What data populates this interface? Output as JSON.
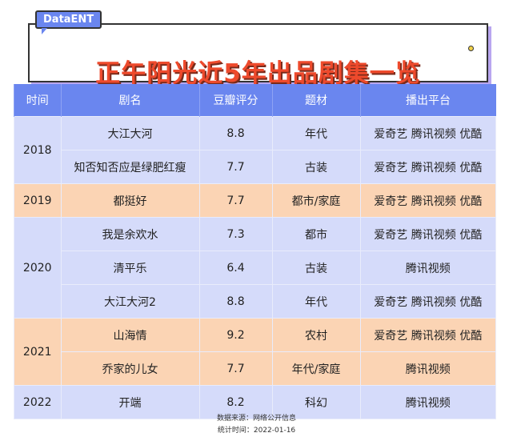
{
  "brand": "DataENT",
  "title": "正午阳光近5年出品剧集一览",
  "columns": [
    "时间",
    "剧名",
    "豆瓣评分",
    "题材",
    "播出平台"
  ],
  "colors": {
    "header": "#6a86ef",
    "row_blue": "#d5dbfa",
    "row_orange": "#fbd4b4",
    "title": "#ee4a2c"
  },
  "groups": [
    {
      "year": "2018",
      "rows": [
        {
          "name": "大江大河",
          "score": "8.8",
          "genre": "年代",
          "platform": "爱奇艺 腾讯视频 优酷"
        },
        {
          "name": "知否知否应是绿肥红瘦",
          "score": "7.7",
          "genre": "古装",
          "platform": "爱奇艺 腾讯视频 优酷"
        }
      ]
    },
    {
      "year": "2019",
      "rows": [
        {
          "name": "都挺好",
          "score": "7.7",
          "genre": "都市/家庭",
          "platform": "爱奇艺 腾讯视频 优酷"
        }
      ]
    },
    {
      "year": "2020",
      "rows": [
        {
          "name": "我是余欢水",
          "score": "7.3",
          "genre": "都市",
          "platform": "爱奇艺 腾讯视频 优酷"
        },
        {
          "name": "清平乐",
          "score": "6.4",
          "genre": "古装",
          "platform": "腾讯视频"
        },
        {
          "name": "大江大河2",
          "score": "8.8",
          "genre": "年代",
          "platform": "爱奇艺 腾讯视频 优酷"
        }
      ]
    },
    {
      "year": "2021",
      "rows": [
        {
          "name": "山海情",
          "score": "9.2",
          "genre": "农村",
          "platform": "爱奇艺 腾讯视频 优酷"
        },
        {
          "name": "乔家的儿女",
          "score": "7.7",
          "genre": "年代/家庭",
          "platform": "腾讯视频"
        }
      ]
    },
    {
      "year": "2022",
      "rows": [
        {
          "name": "开端",
          "score": "8.2",
          "genre": "科幻",
          "platform": "腾讯视频"
        }
      ]
    }
  ],
  "footer": {
    "source": "数据来源：网络公开信息",
    "date": "统计时间：2022-01-16"
  }
}
